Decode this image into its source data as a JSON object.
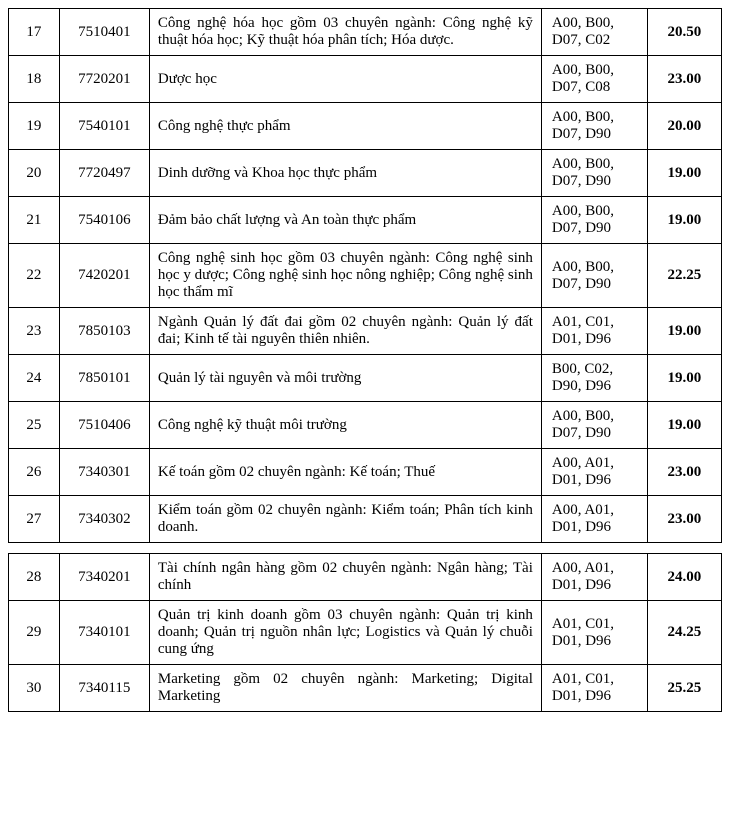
{
  "rows_a": [
    {
      "idx": "17",
      "code": "7510401",
      "name": "Công nghệ hóa học gồm 03 chuyên ngành: Công nghệ kỹ thuật hóa học; Kỹ thuật hóa phân tích; Hóa dược.",
      "combo": "A00, B00, D07, C02",
      "score": "20.50"
    },
    {
      "idx": "18",
      "code": "7720201",
      "name": "Dược học",
      "combo": "A00, B00, D07, C08",
      "score": "23.00"
    },
    {
      "idx": "19",
      "code": "7540101",
      "name": "Công nghệ thực phẩm",
      "combo": "A00, B00, D07, D90",
      "score": "20.00"
    },
    {
      "idx": "20",
      "code": "7720497",
      "name": "Dinh dưỡng và Khoa học thực phẩm",
      "combo": "A00, B00, D07, D90",
      "score": "19.00"
    },
    {
      "idx": "21",
      "code": "7540106",
      "name": "Đảm bảo chất lượng và An toàn thực phẩm",
      "combo": "A00, B00, D07, D90",
      "score": "19.00"
    },
    {
      "idx": "22",
      "code": "7420201",
      "name": "Công nghệ sinh học gồm 03 chuyên ngành: Công nghệ sinh học y dược; Công nghệ sinh học nông nghiệp; Công nghệ sinh học thẩm mĩ",
      "combo": "A00, B00, D07, D90",
      "score": "22.25"
    },
    {
      "idx": "23",
      "code": "7850103",
      "name": "Ngành Quản lý đất đai gồm 02 chuyên ngành: Quản lý đất đai; Kinh tế tài nguyên thiên nhiên.",
      "combo": "A01, C01, D01, D96",
      "score": "19.00"
    },
    {
      "idx": "24",
      "code": "7850101",
      "name": "Quản lý tài nguyên và môi trường",
      "combo": "B00, C02, D90, D96",
      "score": "19.00"
    },
    {
      "idx": "25",
      "code": "7510406",
      "name": "Công nghệ kỹ thuật môi trường",
      "combo": "A00, B00, D07, D90",
      "score": "19.00"
    },
    {
      "idx": "26",
      "code": "7340301",
      "name": "Kế toán gồm 02 chuyên ngành: Kế toán; Thuế",
      "combo": "A00, A01, D01, D96",
      "score": "23.00"
    },
    {
      "idx": "27",
      "code": "7340302",
      "name": "Kiểm toán gồm 02 chuyên ngành: Kiểm toán; Phân tích kinh doanh.",
      "combo": "A00, A01, D01, D96",
      "score": "23.00"
    }
  ],
  "rows_b": [
    {
      "idx": "28",
      "code": "7340201",
      "name": "Tài chính ngân hàng gồm 02 chuyên ngành: Ngân hàng; Tài chính",
      "combo": "A00, A01, D01, D96",
      "score": "24.00"
    },
    {
      "idx": "29",
      "code": "7340101",
      "name": "Quản trị kinh doanh gồm 03 chuyên ngành: Quản trị kinh doanh; Quản trị nguồn nhân lực; Logistics và Quản lý chuỗi cung ứng",
      "combo": "A01, C01, D01, D96",
      "score": "24.25"
    },
    {
      "idx": "30",
      "code": "7340115",
      "name": "Marketing gồm 02 chuyên ngành: Marketing; Digital Marketing",
      "combo": "A01, C01, D01, D96",
      "score": "25.25"
    }
  ]
}
